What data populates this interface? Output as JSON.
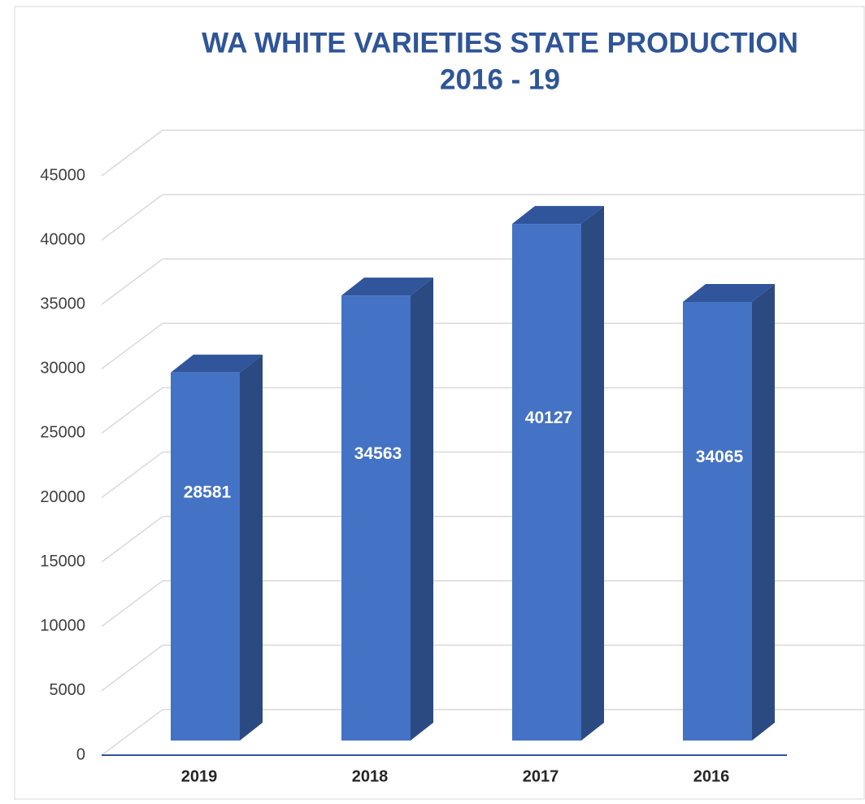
{
  "chart_data": {
    "type": "bar3d",
    "title": [
      "WA WHITE VARIETIES STATE PRODUCTION",
      "2016 - 19"
    ],
    "categories": [
      "2019",
      "2018",
      "2017",
      "2016"
    ],
    "values": [
      28581,
      34563,
      40127,
      34065
    ],
    "color": "#4472c4",
    "ylim": [
      0,
      45000
    ],
    "yticks": [
      0,
      5000,
      10000,
      15000,
      20000,
      25000,
      30000,
      35000,
      40000,
      45000
    ],
    "grid": true
  }
}
